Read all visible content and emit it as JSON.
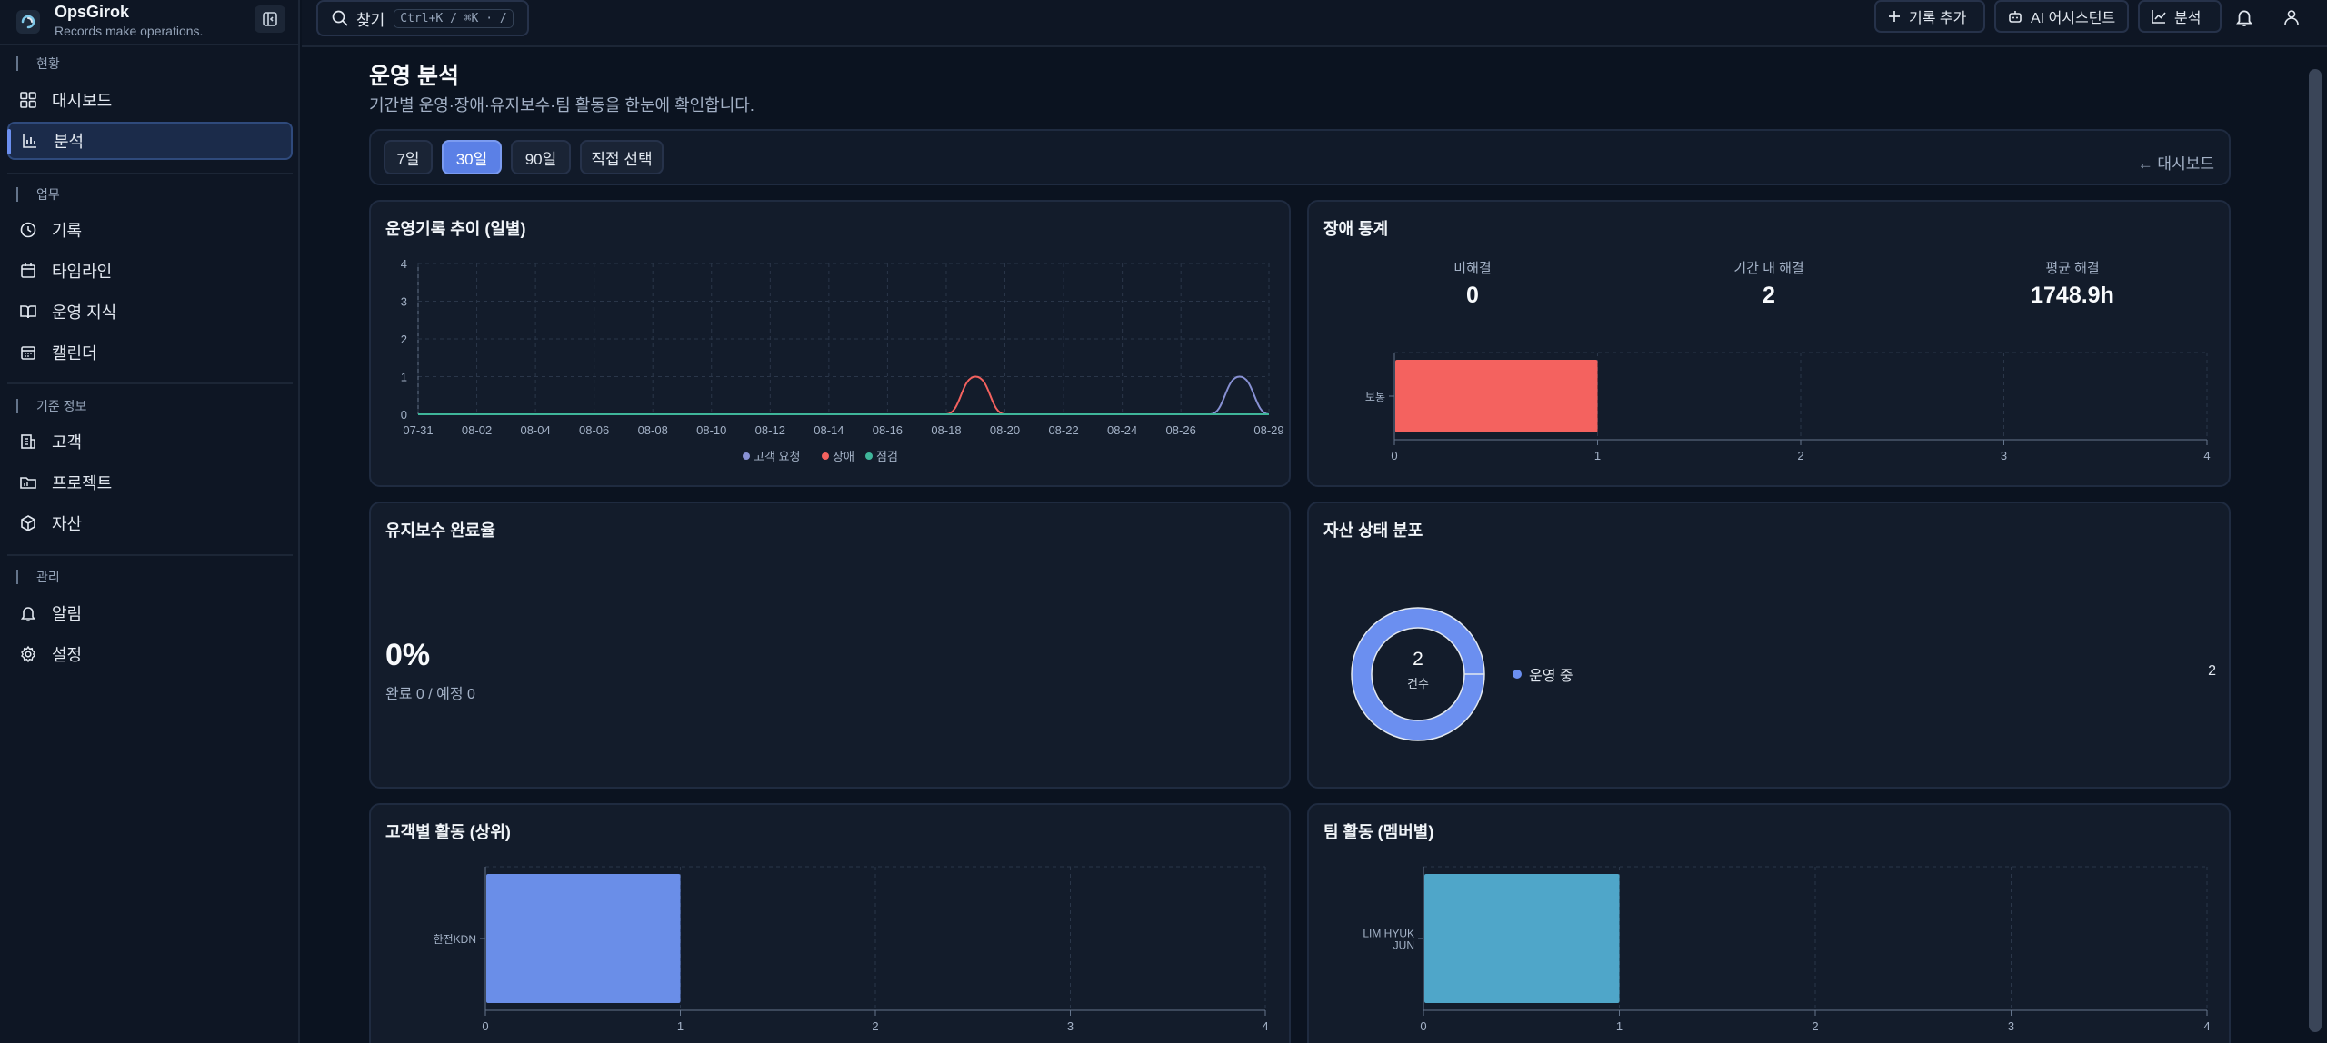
{
  "brand": {
    "name": "OpsGirok",
    "tagline": "Records make operations."
  },
  "sidebar": {
    "sections": [
      {
        "label": "현황"
      },
      {
        "label": "업무"
      },
      {
        "label": "기준 정보"
      },
      {
        "label": "관리"
      }
    ],
    "items": [
      {
        "label": "대시보드",
        "icon": "dashboard-icon"
      },
      {
        "label": "분석",
        "icon": "chart-icon",
        "active": true
      },
      {
        "label": "기록",
        "icon": "clock-icon"
      },
      {
        "label": "타임라인",
        "icon": "calendar-icon"
      },
      {
        "label": "운영 지식",
        "icon": "book-icon"
      },
      {
        "label": "캘린더",
        "icon": "calendar-grid-icon"
      },
      {
        "label": "고객",
        "icon": "building-icon"
      },
      {
        "label": "프로젝트",
        "icon": "folder-icon"
      },
      {
        "label": "자산",
        "icon": "cube-icon"
      },
      {
        "label": "알림",
        "icon": "bell-icon"
      },
      {
        "label": "설정",
        "icon": "gear-icon"
      }
    ]
  },
  "topbar": {
    "search_label": "찾기",
    "search_shortcut": "Ctrl+K / ⌘K · /",
    "add_record": "기록 추가",
    "ai_assistant": "AI 어시스턴트",
    "analysis": "분석"
  },
  "page": {
    "title": "운영 분석",
    "subtitle": "기간별 운영·장애·유지보수·팀 활동을 한눈에 확인합니다.",
    "ranges": [
      "7일",
      "30일",
      "90일",
      "직접 선택"
    ],
    "active_range": "30일",
    "back_link": "← 대시보드"
  },
  "cards": {
    "trend": {
      "title": "운영기록 추이 (일별)"
    },
    "incident": {
      "title": "장애 통계",
      "stats": [
        {
          "label": "미해결",
          "value": "0"
        },
        {
          "label": "기간 내 해결",
          "value": "2"
        },
        {
          "label": "평균 해결",
          "value": "1748.9h"
        }
      ]
    },
    "maintenance": {
      "title": "유지보수 완료율",
      "percent": "0%",
      "detail": "완료 0 / 예정 0"
    },
    "asset": {
      "title": "자산 상태 분포",
      "center_value": "2",
      "center_label": "건수",
      "legend_label": "운영 중",
      "legend_value": "2"
    },
    "customer": {
      "title": "고객별 활동 (상위)"
    },
    "team": {
      "title": "팀 활동 (멤버별)"
    }
  },
  "colors": {
    "accent": "#6b8ff0",
    "incident": "#f4625f",
    "customer_req": "#8891d4",
    "inspection": "#3fb59a",
    "team": "#4fa6c9"
  },
  "chart_data": [
    {
      "type": "line",
      "title": "운영기록 추이 (일별)",
      "x": [
        "07-31",
        "08-01",
        "08-02",
        "08-03",
        "08-04",
        "08-05",
        "08-06",
        "08-07",
        "08-08",
        "08-09",
        "08-10",
        "08-11",
        "08-12",
        "08-13",
        "08-14",
        "08-15",
        "08-16",
        "08-17",
        "08-18",
        "08-19",
        "08-20",
        "08-21",
        "08-22",
        "08-23",
        "08-24",
        "08-25",
        "08-26",
        "08-27",
        "08-28",
        "08-29"
      ],
      "tick_labels": [
        "07-31",
        "08-02",
        "08-04",
        "08-06",
        "08-08",
        "08-10",
        "08-12",
        "08-14",
        "08-16",
        "08-18",
        "08-20",
        "08-22",
        "08-24",
        "08-26",
        "08-29"
      ],
      "series": [
        {
          "name": "고객 요청",
          "values": [
            0,
            0,
            0,
            0,
            0,
            0,
            0,
            0,
            0,
            0,
            0,
            0,
            0,
            0,
            0,
            0,
            0,
            0,
            0,
            0,
            0,
            0,
            0,
            0,
            0,
            0,
            0,
            0,
            1,
            0
          ]
        },
        {
          "name": "장애",
          "values": [
            0,
            0,
            0,
            0,
            0,
            0,
            0,
            0,
            0,
            0,
            0,
            0,
            0,
            0,
            0,
            0,
            0,
            0,
            0,
            1,
            0,
            0,
            0,
            0,
            0,
            0,
            0,
            0,
            0,
            0
          ]
        },
        {
          "name": "점검",
          "values": [
            0,
            0,
            0,
            0,
            0,
            0,
            0,
            0,
            0,
            0,
            0,
            0,
            0,
            0,
            0,
            0,
            0,
            0,
            0,
            0,
            0,
            0,
            0,
            0,
            0,
            0,
            0,
            0,
            0,
            0
          ]
        }
      ],
      "ylim": [
        0,
        4
      ],
      "yticks": [
        0,
        1,
        2,
        3,
        4
      ],
      "legend": "bottom",
      "grid": true
    },
    {
      "type": "bar",
      "orientation": "horizontal",
      "categories": [
        "보통"
      ],
      "values": [
        1
      ],
      "xlim": [
        0,
        4
      ],
      "xticks": [
        0,
        1,
        2,
        3,
        4
      ],
      "grid": true
    },
    {
      "type": "pie",
      "donut": true,
      "categories": [
        "운영 중"
      ],
      "values": [
        2
      ]
    },
    {
      "type": "bar",
      "orientation": "horizontal",
      "title": "고객별 활동 (상위)",
      "categories": [
        "한전KDN"
      ],
      "values": [
        1
      ],
      "xlim": [
        0,
        4
      ],
      "xticks": [
        0,
        1,
        2,
        3,
        4
      ],
      "grid": true
    },
    {
      "type": "bar",
      "orientation": "horizontal",
      "title": "팀 활동 (멤버별)",
      "categories": [
        "LIM HYUK JUN"
      ],
      "category_lines": [
        "LIM HYUK",
        "JUN"
      ],
      "values": [
        1
      ],
      "xlim": [
        0,
        4
      ],
      "xticks": [
        0,
        1,
        2,
        3,
        4
      ],
      "grid": true
    }
  ]
}
